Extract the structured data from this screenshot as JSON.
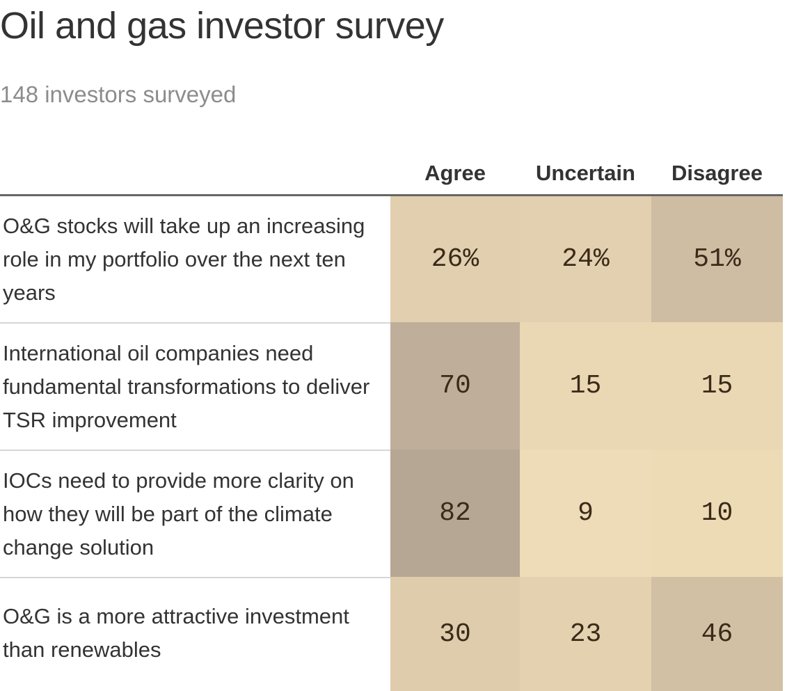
{
  "chart_data": {
    "type": "table",
    "title": "Oil and gas investor survey",
    "subtitle": "148 investors surveyed",
    "columns": [
      "Agree",
      "Uncertain",
      "Disagree"
    ],
    "rows": [
      {
        "label": "O&G stocks will take up an increasing role in my portfolio over the next ten years",
        "values": [
          26,
          24,
          51
        ],
        "display": [
          "26%",
          "24%",
          "51%"
        ]
      },
      {
        "label": "International oil companies need fundamental transformations to deliver TSR improvement",
        "values": [
          70,
          15,
          15
        ],
        "display": [
          "70",
          "15",
          "15"
        ]
      },
      {
        "label": "IOCs need to provide more clarity on how they will be part of the climate change solution",
        "values": [
          82,
          9,
          10
        ],
        "display": [
          "82",
          "9",
          "10"
        ]
      },
      {
        "label": "O&G is a more attractive investment than renewables",
        "values": [
          30,
          23,
          46
        ],
        "display": [
          "30",
          "23",
          "46"
        ]
      }
    ],
    "color_scale": {
      "low": "#f5e2bb",
      "high": "#b0a090",
      "min_value": 0,
      "max_value": 90
    }
  }
}
